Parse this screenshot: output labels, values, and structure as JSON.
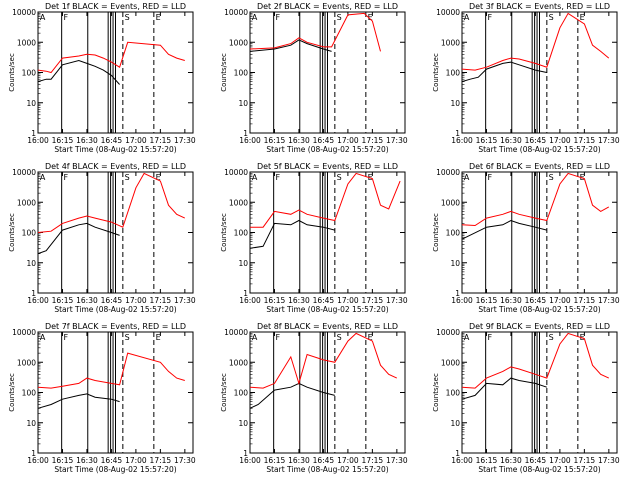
{
  "chart_data": [
    {
      "type": "line",
      "title": "Det 1f BLACK = Events, RED = LLD",
      "xlabel": "Start Time (08-Aug-02 15:57:20)",
      "ylabel": "Counts/sec",
      "yscale": "log",
      "ylim": [
        1,
        10000
      ],
      "xlim": [
        "16:00",
        "17:35"
      ],
      "xticks": [
        "16:00",
        "16:15",
        "16:30",
        "16:45",
        "17:00",
        "17:15",
        "17:30"
      ],
      "yticks": [
        "1",
        "10",
        "100",
        "1000",
        "10000"
      ],
      "markers": [
        "A",
        "F",
        "S",
        "E"
      ],
      "series": [
        {
          "name": "Events",
          "color": "#000000",
          "x": [
            "16:00",
            "16:05",
            "16:08",
            "16:15",
            "16:25",
            "16:30",
            "16:35",
            "16:40",
            "16:45",
            "16:50"
          ],
          "y": [
            50,
            60,
            60,
            180,
            250,
            200,
            160,
            120,
            80,
            40
          ]
        },
        {
          "name": "LLD",
          "color": "#ff0000",
          "x": [
            "16:00",
            "16:05",
            "16:08",
            "16:15",
            "16:25",
            "16:30",
            "16:35",
            "16:40",
            "16:45",
            "16:50",
            "16:55",
            "17:15",
            "17:20",
            "17:25",
            "17:30"
          ],
          "y": [
            120,
            110,
            100,
            300,
            350,
            400,
            380,
            300,
            220,
            150,
            1000,
            800,
            400,
            300,
            250
          ]
        }
      ]
    },
    {
      "type": "line",
      "title": "Det 2f BLACK = Events, RED = LLD",
      "xlabel": "Start Time (08-Aug-02 15:57:20)",
      "ylabel": "Counts/sec",
      "yscale": "log",
      "ylim": [
        1,
        10000
      ],
      "xlim": [
        "16:00",
        "17:35"
      ],
      "xticks": [
        "16:00",
        "16:15",
        "16:30",
        "16:45",
        "17:00",
        "17:15",
        "17:30"
      ],
      "yticks": [
        "1",
        "10",
        "100",
        "1000",
        "10000"
      ],
      "markers": [
        "A",
        "F",
        "S",
        "E"
      ],
      "series": [
        {
          "name": "Events",
          "color": "#000000",
          "x": [
            "16:00",
            "16:15",
            "16:25",
            "16:30",
            "16:35",
            "16:45",
            "16:50"
          ],
          "y": [
            500,
            600,
            800,
            1200,
            900,
            600,
            500
          ]
        },
        {
          "name": "LLD",
          "color": "#ff0000",
          "x": [
            "16:00",
            "16:15",
            "16:25",
            "16:30",
            "16:35",
            "16:45",
            "16:50",
            "17:00",
            "17:10",
            "17:15",
            "17:20"
          ],
          "y": [
            600,
            650,
            900,
            1400,
            1000,
            700,
            700,
            8000,
            9000,
            5000,
            500
          ]
        }
      ]
    },
    {
      "type": "line",
      "title": "Det 3f BLACK = Events, RED = LLD",
      "xlabel": "Start Time (08-Aug-02 15:57:20)",
      "ylabel": "Counts/sec",
      "yscale": "log",
      "ylim": [
        1,
        10000
      ],
      "xlim": [
        "16:00",
        "17:35"
      ],
      "xticks": [
        "16:00",
        "16:15",
        "16:30",
        "16:45",
        "17:00",
        "17:15",
        "17:30"
      ],
      "yticks": [
        "1",
        "10",
        "100",
        "1000",
        "10000"
      ],
      "markers": [
        "A",
        "F",
        "S",
        "E"
      ],
      "series": [
        {
          "name": "Events",
          "color": "#000000",
          "x": [
            "16:00",
            "16:05",
            "16:10",
            "16:15",
            "16:25",
            "16:30",
            "16:35",
            "16:45",
            "16:52"
          ],
          "y": [
            50,
            60,
            70,
            130,
            200,
            220,
            180,
            120,
            100
          ]
        },
        {
          "name": "LLD",
          "color": "#ff0000",
          "x": [
            "16:00",
            "16:08",
            "16:15",
            "16:25",
            "16:30",
            "16:35",
            "16:45",
            "16:52",
            "17:00",
            "17:05",
            "17:15",
            "17:20",
            "17:25",
            "17:30"
          ],
          "y": [
            130,
            120,
            150,
            250,
            300,
            280,
            200,
            150,
            3000,
            9000,
            4000,
            800,
            500,
            300
          ]
        }
      ]
    },
    {
      "type": "line",
      "title": "Det 4f BLACK = Events, RED = LLD",
      "xlabel": "Start Time (08-Aug-02 15:57:20)",
      "ylabel": "Counts/sec",
      "yscale": "log",
      "ylim": [
        1,
        10000
      ],
      "xlim": [
        "16:00",
        "17:35"
      ],
      "xticks": [
        "16:00",
        "16:15",
        "16:30",
        "16:45",
        "17:00",
        "17:15",
        "17:30"
      ],
      "yticks": [
        "1",
        "10",
        "100",
        "1000",
        "10000"
      ],
      "markers": [
        "A",
        "F",
        "S",
        "E"
      ],
      "series": [
        {
          "name": "Events",
          "color": "#000000",
          "x": [
            "16:00",
            "16:05",
            "16:15",
            "16:25",
            "16:30",
            "16:35",
            "16:45",
            "16:50"
          ],
          "y": [
            20,
            25,
            120,
            180,
            200,
            150,
            100,
            80
          ]
        },
        {
          "name": "LLD",
          "color": "#ff0000",
          "x": [
            "16:00",
            "16:08",
            "16:15",
            "16:25",
            "16:30",
            "16:35",
            "16:45",
            "16:52",
            "17:00",
            "17:05",
            "17:15",
            "17:20",
            "17:25",
            "17:30"
          ],
          "y": [
            100,
            110,
            200,
            300,
            350,
            300,
            220,
            150,
            3000,
            9000,
            5000,
            800,
            400,
            300
          ]
        }
      ]
    },
    {
      "type": "line",
      "title": "Det 5f BLACK = Events, RED = LLD",
      "xlabel": "Start Time (08-Aug-02 15:57:20)",
      "ylabel": "Counts/sec",
      "yscale": "log",
      "ylim": [
        1,
        10000
      ],
      "xlim": [
        "16:00",
        "17:35"
      ],
      "xticks": [
        "16:00",
        "16:15",
        "16:30",
        "16:45",
        "17:00",
        "17:15",
        "17:30"
      ],
      "yticks": [
        "1",
        "10",
        "100",
        "1000",
        "10000"
      ],
      "markers": [
        "A",
        "F",
        "S",
        "E"
      ],
      "series": [
        {
          "name": "Events",
          "color": "#000000",
          "x": [
            "16:00",
            "16:08",
            "16:15",
            "16:25",
            "16:30",
            "16:35",
            "16:45",
            "16:52"
          ],
          "y": [
            30,
            35,
            200,
            180,
            250,
            180,
            150,
            120
          ]
        },
        {
          "name": "LLD",
          "color": "#ff0000",
          "x": [
            "16:00",
            "16:08",
            "16:15",
            "16:25",
            "16:30",
            "16:35",
            "16:45",
            "16:52",
            "17:00",
            "17:05",
            "17:15",
            "17:20",
            "17:25",
            "17:32"
          ],
          "y": [
            150,
            150,
            500,
            400,
            550,
            400,
            300,
            250,
            4000,
            9000,
            6000,
            800,
            600,
            5000
          ]
        }
      ]
    },
    {
      "type": "line",
      "title": "Det 6f BLACK = Events, RED = LLD",
      "xlabel": "Start Time (08-Aug-02 15:57:20)",
      "ylabel": "Counts/sec",
      "yscale": "log",
      "ylim": [
        1,
        10000
      ],
      "xlim": [
        "16:00",
        "17:35"
      ],
      "xticks": [
        "16:00",
        "16:15",
        "16:30",
        "16:45",
        "17:00",
        "17:15",
        "17:30"
      ],
      "yticks": [
        "1",
        "10",
        "100",
        "1000",
        "10000"
      ],
      "markers": [
        "A",
        "F",
        "S",
        "E"
      ],
      "series": [
        {
          "name": "Events",
          "color": "#000000",
          "x": [
            "16:00",
            "16:15",
            "16:25",
            "16:30",
            "16:35",
            "16:45",
            "16:52"
          ],
          "y": [
            60,
            150,
            180,
            250,
            200,
            150,
            120
          ]
        },
        {
          "name": "LLD",
          "color": "#ff0000",
          "x": [
            "16:00",
            "16:08",
            "16:15",
            "16:25",
            "16:30",
            "16:35",
            "16:45",
            "16:52",
            "17:00",
            "17:05",
            "17:15",
            "17:20",
            "17:25",
            "17:30"
          ],
          "y": [
            180,
            170,
            300,
            400,
            500,
            400,
            300,
            250,
            4000,
            9000,
            6000,
            800,
            500,
            700
          ]
        }
      ]
    },
    {
      "type": "line",
      "title": "Det 7f BLACK = Events, RED = LLD",
      "xlabel": "Start Time (08-Aug-02 15:57:20)",
      "ylabel": "Counts/sec",
      "yscale": "log",
      "ylim": [
        1,
        10000
      ],
      "xlim": [
        "16:00",
        "17:35"
      ],
      "xticks": [
        "16:00",
        "16:15",
        "16:30",
        "16:45",
        "17:00",
        "17:15",
        "17:30"
      ],
      "yticks": [
        "1",
        "10",
        "100",
        "1000",
        "10000"
      ],
      "markers": [
        "A",
        "F",
        "S",
        "E"
      ],
      "series": [
        {
          "name": "Events",
          "color": "#000000",
          "x": [
            "16:00",
            "16:08",
            "16:15",
            "16:25",
            "16:30",
            "16:35",
            "16:45",
            "16:50"
          ],
          "y": [
            30,
            40,
            60,
            80,
            90,
            70,
            60,
            50
          ]
        },
        {
          "name": "LLD",
          "color": "#ff0000",
          "x": [
            "16:00",
            "16:08",
            "16:15",
            "16:25",
            "16:30",
            "16:35",
            "16:45",
            "16:50",
            "16:55",
            "17:15",
            "17:20",
            "17:25",
            "17:30"
          ],
          "y": [
            150,
            140,
            160,
            200,
            300,
            250,
            200,
            180,
            2000,
            1000,
            500,
            300,
            250
          ]
        }
      ]
    },
    {
      "type": "line",
      "title": "Det 8f BLACK = Events, RED = LLD",
      "xlabel": "Start Time (08-Aug-02 15:57:20)",
      "ylabel": "Counts/sec",
      "yscale": "log",
      "ylim": [
        1,
        10000
      ],
      "xlim": [
        "16:00",
        "17:35"
      ],
      "xticks": [
        "16:00",
        "16:15",
        "16:30",
        "16:45",
        "17:00",
        "17:15",
        "17:30"
      ],
      "yticks": [
        "1",
        "10",
        "100",
        "1000",
        "10000"
      ],
      "markers": [
        "A",
        "F",
        "S",
        "E"
      ],
      "series": [
        {
          "name": "Events",
          "color": "#000000",
          "x": [
            "16:00",
            "16:05",
            "16:15",
            "16:25",
            "16:30",
            "16:35",
            "16:45",
            "16:52"
          ],
          "y": [
            30,
            40,
            120,
            150,
            200,
            150,
            100,
            80
          ]
        },
        {
          "name": "LLD",
          "color": "#ff0000",
          "x": [
            "16:00",
            "16:08",
            "16:15",
            "16:25",
            "16:30",
            "16:35",
            "16:45",
            "16:52",
            "17:00",
            "17:05",
            "17:15",
            "17:20",
            "17:25",
            "17:30"
          ],
          "y": [
            150,
            140,
            200,
            1500,
            200,
            1800,
            1200,
            1000,
            5000,
            9000,
            5000,
            800,
            400,
            300
          ]
        }
      ]
    },
    {
      "type": "line",
      "title": "Det 9f BLACK = Events, RED = LLD",
      "xlabel": "Start Time (08-Aug-02 15:57:20)",
      "ylabel": "Counts/sec",
      "yscale": "log",
      "ylim": [
        1,
        10000
      ],
      "xlim": [
        "16:00",
        "17:35"
      ],
      "xticks": [
        "16:00",
        "16:15",
        "16:30",
        "16:45",
        "17:00",
        "17:15",
        "17:30"
      ],
      "yticks": [
        "1",
        "10",
        "100",
        "1000",
        "10000"
      ],
      "markers": [
        "A",
        "F",
        "S",
        "E"
      ],
      "series": [
        {
          "name": "Events",
          "color": "#000000",
          "x": [
            "16:00",
            "16:08",
            "16:15",
            "16:25",
            "16:30",
            "16:35",
            "16:45",
            "16:52"
          ],
          "y": [
            60,
            80,
            200,
            180,
            300,
            250,
            200,
            150
          ]
        },
        {
          "name": "LLD",
          "color": "#ff0000",
          "x": [
            "16:00",
            "16:08",
            "16:15",
            "16:25",
            "16:30",
            "16:35",
            "16:45",
            "16:52",
            "17:00",
            "17:05",
            "17:15",
            "17:20",
            "17:25",
            "17:30"
          ],
          "y": [
            150,
            140,
            300,
            500,
            700,
            600,
            400,
            300,
            4000,
            9000,
            6000,
            800,
            400,
            300
          ]
        }
      ]
    }
  ]
}
